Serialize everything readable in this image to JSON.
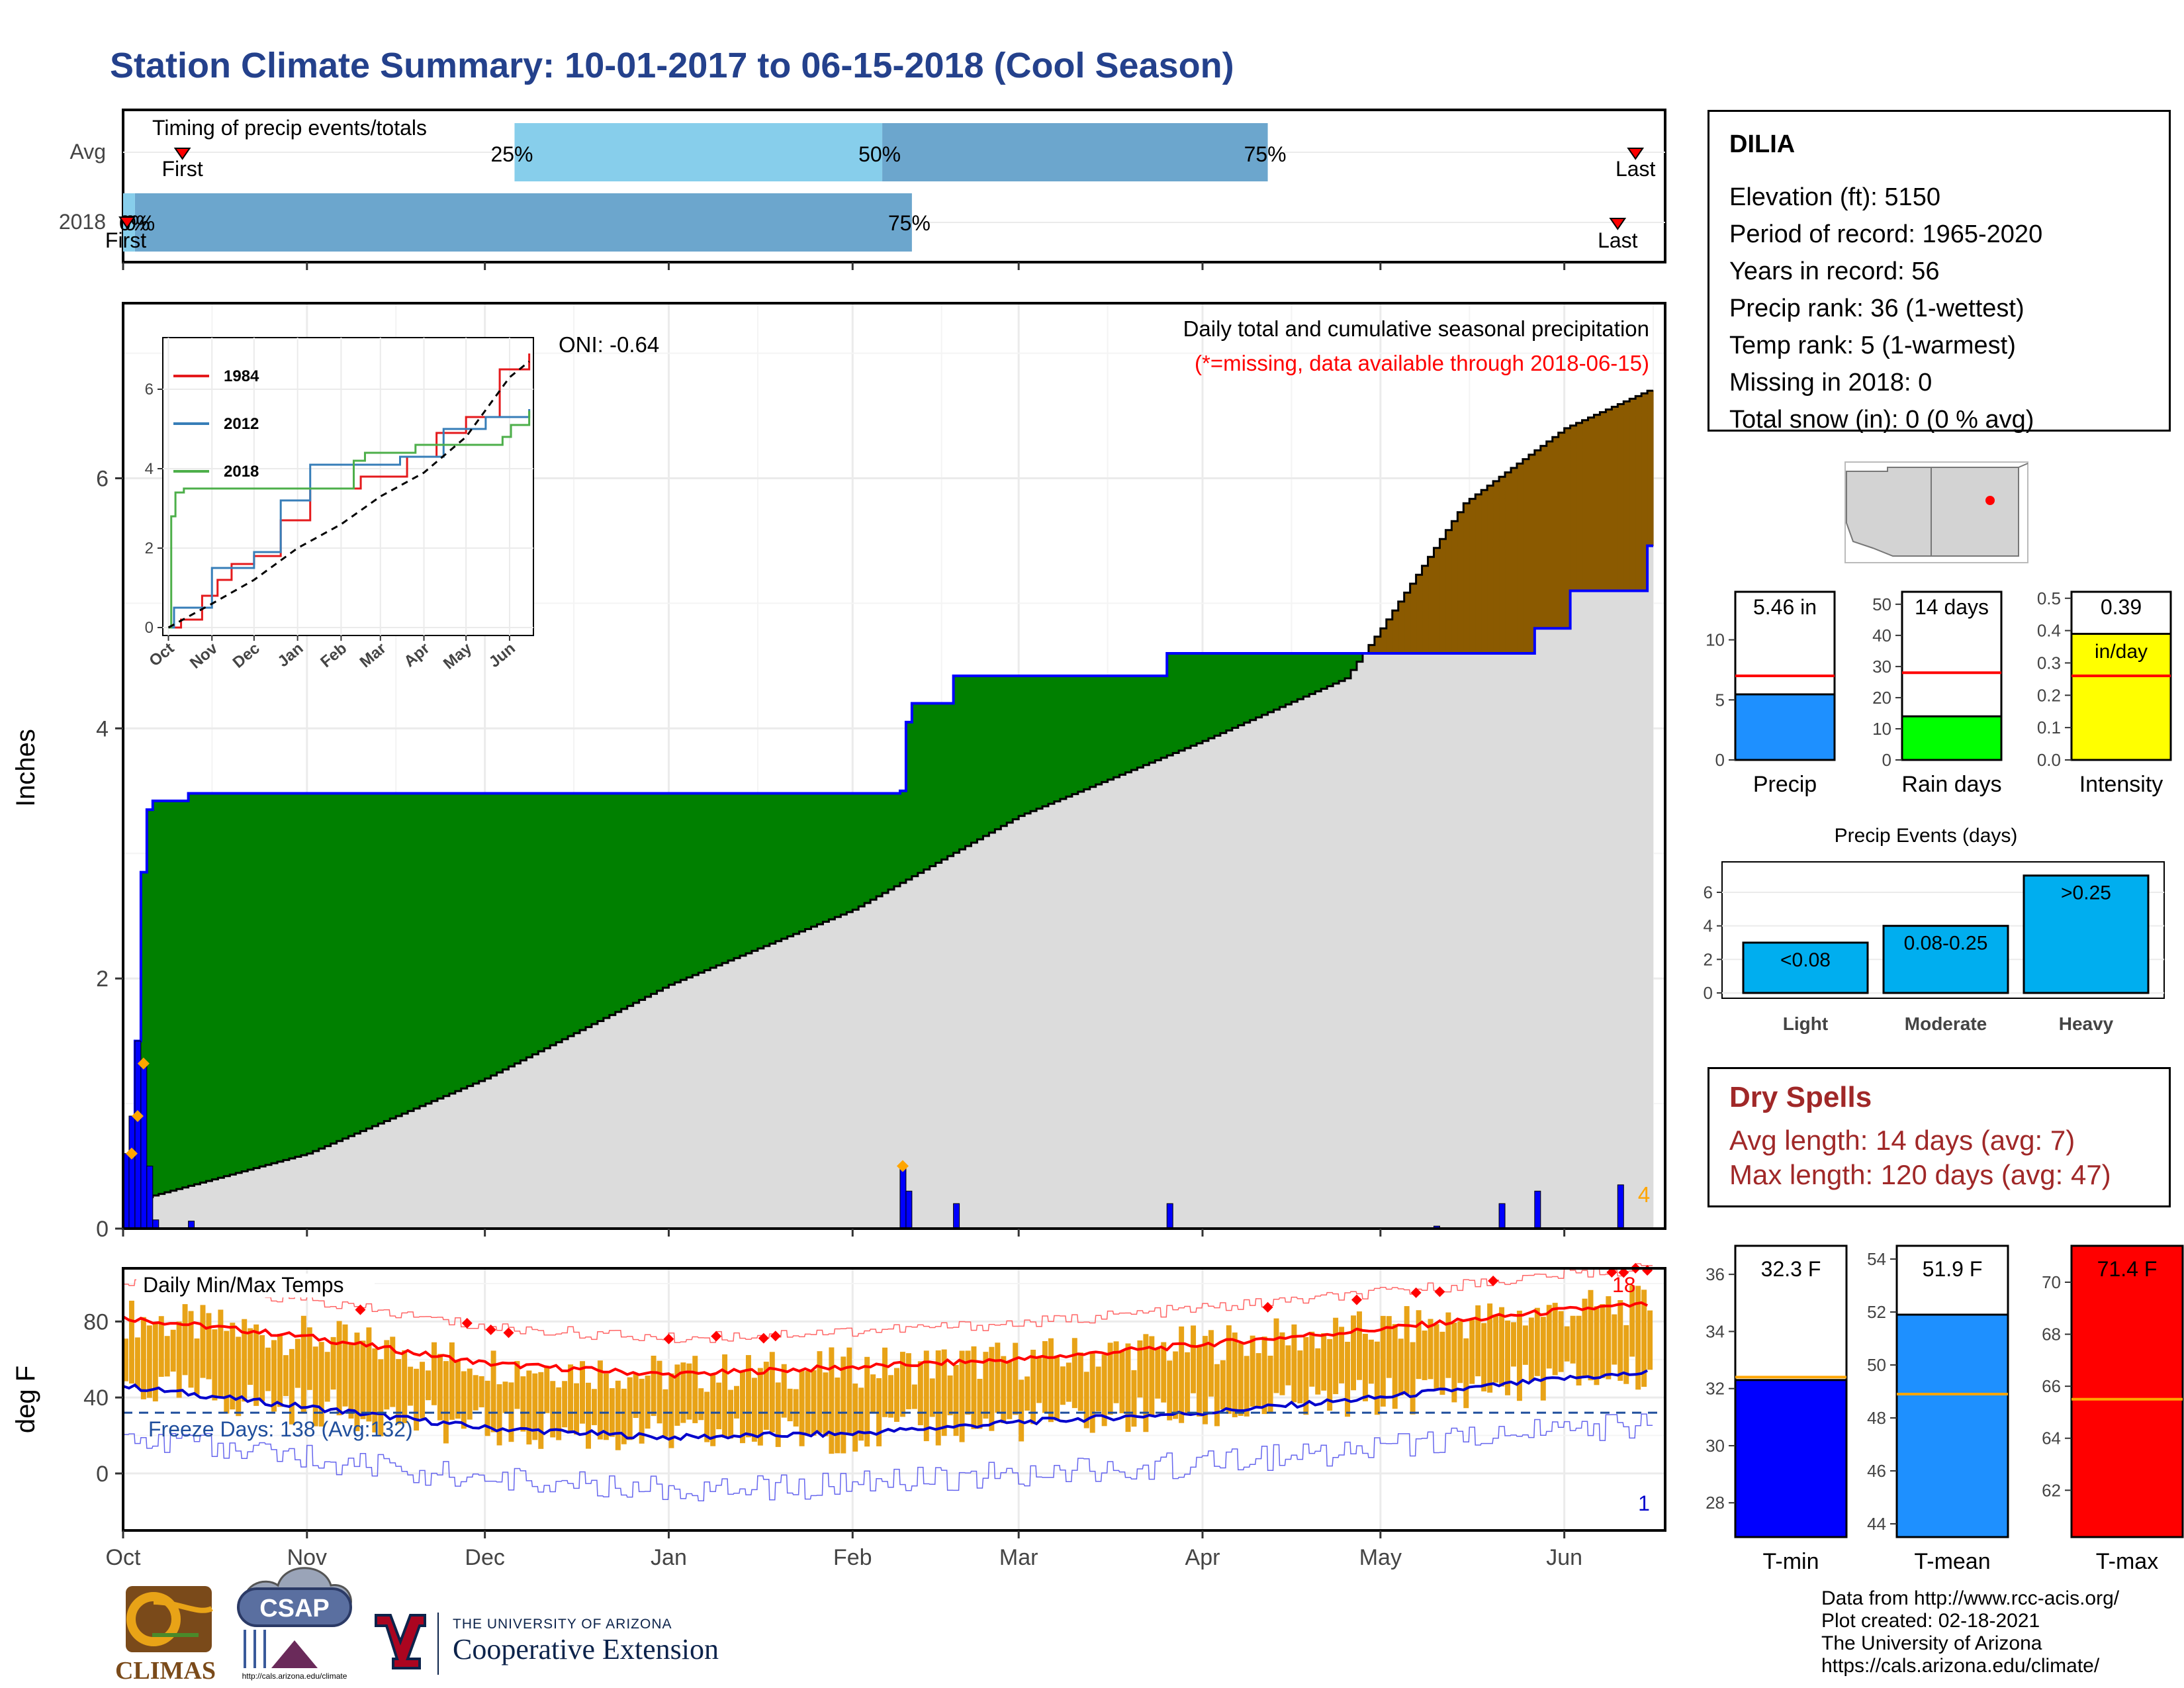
{
  "title": "Station Climate Summary: 10-01-2017 to 06-15-2018 (Cool Season)",
  "timing_panel": {
    "title": "Timing of precip events/totals",
    "rows": [
      "Avg",
      "2018"
    ],
    "avg": {
      "first_label": "First",
      "last_label": "Last",
      "p25": "25%",
      "p50": "50%",
      "p75": "75%"
    },
    "y2018": {
      "first_label": "First",
      "last_label": "Last",
      "p0": "0%",
      "p25": "0%",
      "p75": "75%"
    }
  },
  "precip_panel": {
    "y_label": "Inches",
    "subtitle": "Daily total and cumulative seasonal precipitation",
    "missing_note": "(*=missing, data available through 2018-06-15)",
    "oni": "ONI: -0.64",
    "missing_count": "4",
    "y_ticks": [
      "0",
      "2",
      "4",
      "6"
    ]
  },
  "inset": {
    "legend": [
      "1984",
      "2012",
      "2018"
    ],
    "y_ticks": [
      "0",
      "2",
      "4",
      "6"
    ],
    "x_ticks": [
      "Oct",
      "Nov",
      "Dec",
      "Jan",
      "Feb",
      "Mar",
      "Apr",
      "May",
      "Jun"
    ]
  },
  "temp_panel": {
    "title": "Daily Min/Max Temps",
    "y_label": "deg F",
    "y_ticks": [
      "0",
      "40",
      "80"
    ],
    "freeze_text": "Freeze Days: 138 (Avg:132)",
    "record_high_count": "18",
    "record_low_count": "1"
  },
  "x_months": [
    "Oct",
    "Nov",
    "Dec",
    "Jan",
    "Feb",
    "Mar",
    "Apr",
    "May",
    "Jun"
  ],
  "station": {
    "name": "DILIA",
    "lines": [
      "Elevation (ft): 5150",
      "Period of record: 1965-2020",
      "Years in record: 56",
      "Precip rank: 36 (1-wettest)",
      "Temp rank: 5 (1-warmest)",
      "Missing in 2018: 0",
      "Total snow (in): 0 (0 % avg)"
    ]
  },
  "stat_bars": {
    "precip": {
      "label": "Precip",
      "value_text": "5.46 in",
      "ticks": [
        "0",
        "5",
        "10"
      ]
    },
    "rain_days": {
      "label": "Rain days",
      "value_text": "14 days",
      "ticks": [
        "0",
        "10",
        "20",
        "30",
        "40",
        "50"
      ]
    },
    "intensity": {
      "label": "Intensity",
      "value_text": "0.39",
      "unit_text": "in/day",
      "ticks": [
        "0.0",
        "0.1",
        "0.2",
        "0.3",
        "0.4",
        "0.5"
      ]
    }
  },
  "events": {
    "title": "Precip Events (days)",
    "categories": [
      "Light",
      "Moderate",
      "Heavy"
    ],
    "bar_labels": [
      "<0.08",
      "0.08-0.25",
      ">0.25"
    ],
    "ticks": [
      "0",
      "2",
      "4",
      "6"
    ]
  },
  "dry_spells": {
    "title": "Dry Spells",
    "avg_line": "Avg length: 14 days (avg: 7)",
    "max_line": "Max length: 120 days (avg: 47)"
  },
  "temp_bars": {
    "tmin": {
      "label": "T-min",
      "value_text": "32.3 F",
      "ticks": [
        "28",
        "30",
        "32",
        "34",
        "36"
      ]
    },
    "tmean": {
      "label": "T-mean",
      "value_text": "51.9 F",
      "ticks": [
        "44",
        "46",
        "48",
        "50",
        "52",
        "54"
      ]
    },
    "tmax": {
      "label": "T-max",
      "value_text": "71.4 F",
      "ticks": [
        "62",
        "64",
        "66",
        "68",
        "70"
      ]
    }
  },
  "credits": [
    "Data from http://www.rcc-acis.org/",
    "Plot created: 02-18-2021",
    "The University of Arizona",
    "https://cals.arizona.edu/climate/"
  ],
  "logos": {
    "climas": "CLIMAS",
    "csap": "CSAP",
    "csap_url": "http://cals.arizona.edu/climate",
    "ua_small": "THE UNIVERSITY OF ARIZONA",
    "ua_big": "Cooperative Extension"
  },
  "colors": {
    "title": "#24418c",
    "above_avg": "#008000",
    "below_avg": "#8b5a00",
    "avg_fill": "#dcdcdc",
    "daily_precip": "#0000ff",
    "temp_bar": "#e8a317",
    "tmax_line": "#ff0000",
    "tmin_line": "#0000cc",
    "precip_bar": "#1e90ff",
    "raindays_bar": "#00ff00",
    "intensity_bar": "#ffff00",
    "events_bar": "#00aeef",
    "tmin_bar": "#0000ff",
    "tmean_bar": "#1e90ff",
    "tmax_bar": "#ff0000"
  },
  "chart_data": [
    {
      "type": "bar",
      "name": "timing",
      "rows": [
        "Avg",
        "2018"
      ],
      "avg": {
        "first": "2017-10-11",
        "p25": "2017-12-06",
        "p50": "2018-02-06",
        "p75": "2018-04-12",
        "last": "2018-06-13"
      },
      "y2018": {
        "first": "2017-10-01",
        "p25": "2017-10-03",
        "p75": "2018-02-11",
        "last": "2018-06-10"
      }
    },
    {
      "type": "area",
      "name": "cumulative_precip",
      "ylabel": "Inches",
      "ylim": [
        0,
        7.4
      ],
      "season_2018": [
        [
          "2017-10-01",
          0
        ],
        [
          "2017-10-02",
          0.6
        ],
        [
          "2017-10-03",
          1.5
        ],
        [
          "2017-10-04",
          2.85
        ],
        [
          "2017-10-05",
          3.35
        ],
        [
          "2017-10-06",
          3.42
        ],
        [
          "2017-10-12",
          3.48
        ],
        [
          "2018-02-09",
          3.5
        ],
        [
          "2018-02-10",
          4.05
        ],
        [
          "2018-02-11",
          4.2
        ],
        [
          "2018-02-18",
          4.42
        ],
        [
          "2018-03-26",
          4.6
        ],
        [
          "2018-05-27",
          4.8
        ],
        [
          "2018-06-02",
          5.1
        ],
        [
          "2018-06-15",
          5.46
        ]
      ],
      "average": [
        [
          "2017-10-01",
          0.2
        ],
        [
          "2017-11-01",
          0.6
        ],
        [
          "2017-12-01",
          1.2
        ],
        [
          "2018-01-01",
          1.95
        ],
        [
          "2018-02-01",
          2.55
        ],
        [
          "2018-03-01",
          3.3
        ],
        [
          "2018-04-01",
          3.9
        ],
        [
          "2018-04-25",
          4.4
        ],
        [
          "2018-05-01",
          4.8
        ],
        [
          "2018-05-15",
          5.8
        ],
        [
          "2018-06-01",
          6.4
        ],
        [
          "2018-06-15",
          6.7
        ]
      ],
      "daily": [
        [
          "2017-10-01",
          0.6
        ],
        [
          "2017-10-02",
          0.9
        ],
        [
          "2017-10-03",
          1.5
        ],
        [
          "2017-10-04",
          1.3
        ],
        [
          "2017-10-05",
          0.5
        ],
        [
          "2017-10-06",
          0.07
        ],
        [
          "2017-10-12",
          0.06
        ],
        [
          "2018-02-09",
          0.5
        ],
        [
          "2018-02-10",
          0.3
        ],
        [
          "2018-02-18",
          0.2
        ],
        [
          "2018-03-26",
          0.2
        ],
        [
          "2018-05-10",
          0.02
        ],
        [
          "2018-05-21",
          0.2
        ],
        [
          "2018-05-27",
          0.3
        ],
        [
          "2018-06-10",
          0.35
        ]
      ]
    },
    {
      "type": "line",
      "name": "inset_cumulative",
      "ylim": [
        0,
        7
      ],
      "series": [
        {
          "name": "1984",
          "points": [
            [
              "10-01",
              0
            ],
            [
              "10-10",
              0.2
            ],
            [
              "10-25",
              0.8
            ],
            [
              "11-05",
              1.2
            ],
            [
              "11-15",
              1.6
            ],
            [
              "12-01",
              1.8
            ],
            [
              "12-20",
              2.7
            ],
            [
              "01-10",
              3.5
            ],
            [
              "02-15",
              3.8
            ],
            [
              "03-20",
              4.3
            ],
            [
              "04-10",
              4.9
            ],
            [
              "05-01",
              5.3
            ],
            [
              "05-25",
              6.5
            ],
            [
              "06-15",
              6.9
            ]
          ]
        },
        {
          "name": "2012",
          "points": [
            [
              "10-01",
              0
            ],
            [
              "10-05",
              0.5
            ],
            [
              "11-01",
              1.5
            ],
            [
              "12-01",
              1.9
            ],
            [
              "12-20",
              3.2
            ],
            [
              "01-10",
              4.1
            ],
            [
              "02-15",
              4.1
            ],
            [
              "03-15",
              4.3
            ],
            [
              "04-15",
              5.0
            ],
            [
              "05-15",
              5.3
            ],
            [
              "06-15",
              5.5
            ]
          ]
        },
        {
          "name": "2018",
          "points": [
            [
              "10-01",
              0
            ],
            [
              "10-03",
              2.8
            ],
            [
              "10-06",
              3.4
            ],
            [
              "10-12",
              3.5
            ],
            [
              "02-10",
              4.2
            ],
            [
              "02-18",
              4.4
            ],
            [
              "03-26",
              4.6
            ],
            [
              "05-27",
              4.8
            ],
            [
              "06-02",
              5.1
            ],
            [
              "06-15",
              5.46
            ]
          ]
        },
        {
          "name": "avg",
          "points": [
            [
              "10-01",
              0
            ],
            [
              "11-01",
              0.6
            ],
            [
              "12-01",
              1.2
            ],
            [
              "01-01",
              2.0
            ],
            [
              "02-01",
              2.6
            ],
            [
              "03-01",
              3.3
            ],
            [
              "04-01",
              3.9
            ],
            [
              "05-01",
              4.8
            ],
            [
              "06-01",
              6.3
            ],
            [
              "06-15",
              6.7
            ]
          ]
        }
      ]
    },
    {
      "type": "line",
      "name": "daily_temps",
      "ylim": [
        -30,
        108
      ],
      "freeze_threshold": 32,
      "tmax_avg": [
        [
          "2017-10-01",
          82
        ],
        [
          "2017-11-01",
          72
        ],
        [
          "2017-12-01",
          58
        ],
        [
          "2018-01-01",
          52
        ],
        [
          "2018-02-01",
          56
        ],
        [
          "2018-03-01",
          60
        ],
        [
          "2018-04-01",
          68
        ],
        [
          "2018-05-01",
          76
        ],
        [
          "2018-06-01",
          86
        ],
        [
          "2018-06-15",
          89
        ]
      ],
      "tmin_avg": [
        [
          "2017-10-01",
          46
        ],
        [
          "2017-11-01",
          35
        ],
        [
          "2017-12-01",
          24
        ],
        [
          "2018-01-01",
          19
        ],
        [
          "2018-02-01",
          21
        ],
        [
          "2018-03-01",
          27
        ],
        [
          "2018-04-01",
          32
        ],
        [
          "2018-05-01",
          40
        ],
        [
          "2018-06-01",
          50
        ],
        [
          "2018-06-15",
          53
        ]
      ]
    },
    {
      "type": "bar",
      "name": "season_stats",
      "precip": {
        "value": 5.46,
        "avg": 7.0,
        "ylim": [
          0,
          14
        ]
      },
      "rain_days": {
        "value": 14,
        "avg": 28,
        "ylim": [
          0,
          54
        ]
      },
      "intensity": {
        "value": 0.39,
        "avg": 0.26,
        "ylim": [
          0,
          0.52
        ]
      }
    },
    {
      "type": "bar",
      "name": "precip_events",
      "categories": [
        "Light",
        "Moderate",
        "Heavy"
      ],
      "values": [
        3,
        4,
        7
      ],
      "ylim": [
        0,
        7.5
      ]
    },
    {
      "type": "bar",
      "name": "temp_stats",
      "tmin": {
        "value": 32.3,
        "avg": 32.4,
        "ylim": [
          26.8,
          37
        ]
      },
      "tmean": {
        "value": 51.9,
        "avg": 48.9,
        "ylim": [
          43.5,
          54.5
        ]
      },
      "tmax": {
        "value": 71.4,
        "avg": 65.5,
        "ylim": [
          60.2,
          71.4
        ]
      }
    }
  ]
}
